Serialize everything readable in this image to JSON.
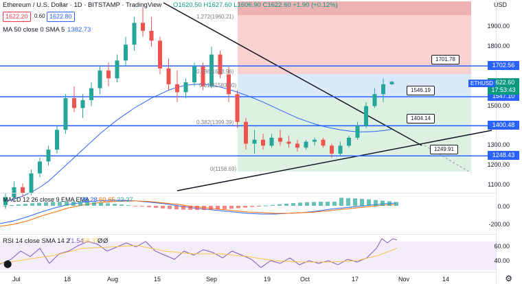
{
  "header": {
    "title": "Ethereum / U.S. Dollar · 1D · BITSTAMP · TradingView",
    "ohlc": "O1620.50 H1627.60 L1606.90 C1622.60 +1.90 (+0.12%)",
    "bid": "1622.20",
    "spread": "0.60",
    "ask": "1622.80",
    "ma_label": "MA 50 close 0 SMA 5",
    "ma_value": "1382.73"
  },
  "price_axis": {
    "currency": "USD",
    "ticks": [
      "1900.00",
      "1800.00",
      "1500.00",
      "1300.00",
      "1200.00",
      "1100.00"
    ],
    "tick_values": [
      1900,
      1800,
      1500,
      1300,
      1200,
      1100
    ],
    "tags": [
      {
        "text": "1702.56",
        "value": 1702.56
      },
      {
        "text": "1547.10",
        "value": 1547.1
      },
      {
        "text": "1400.48",
        "value": 1400.48
      },
      {
        "text": "1248.43",
        "value": 1248.43
      }
    ],
    "last_symbol": "ETHUSD",
    "last_price": "1622.60",
    "countdown": "17:53:43"
  },
  "fib_levels": [
    {
      "text": "1.272(1960.21)",
      "value": 1960.21
    },
    {
      "text": "0.786(1653.96)",
      "value": 1653.96
    },
    {
      "text": "0.618(1583.80)",
      "value": 1583.8
    },
    {
      "text": "0.382(1399.39)",
      "value": 1399.39
    },
    {
      "text": "0(1158.69)",
      "value": 1158.69
    }
  ],
  "callouts": [
    {
      "text": "1701.78",
      "value": 1701.78
    },
    {
      "text": "1546.19",
      "value": 1546.19
    },
    {
      "text": "1404.14",
      "value": 1404.14
    },
    {
      "text": "1249.91",
      "value": 1249.91
    }
  ],
  "horizontal_levels": [
    1702.56,
    1547.1,
    1400.48,
    1248.43
  ],
  "macd": {
    "label": "MACD 12 26 close 9 EMA EMA",
    "v1": "38.28",
    "v2": "60.65",
    "v3": "22.37",
    "ticks": [
      "0.00",
      "-200.00"
    ],
    "colors": {
      "v1": "#2962ff",
      "v2": "#ff6d00",
      "v3": "#26a69a"
    }
  },
  "rsi": {
    "label": "RSI 14 close SMA 14 2",
    "v1": "71.54",
    "v2": "58.37",
    "v3": "Ø",
    "v4": "Ø",
    "ticks": [
      "60.00",
      "40.00"
    ]
  },
  "time_axis": [
    "Jul",
    "18",
    "Aug",
    "15",
    "Sep",
    "19",
    "Oct",
    "17",
    "Nov",
    "14"
  ],
  "colors": {
    "up": "#26a69a",
    "down": "#ef5350",
    "level": "#2962ff",
    "ma": "#2962ff"
  },
  "chart_data": {
    "type": "candlestick",
    "ma_series": [
      1020,
      1030,
      1045,
      1065,
      1090,
      1120,
      1160,
      1200,
      1240,
      1280,
      1320,
      1360,
      1395,
      1430,
      1460,
      1490,
      1515,
      1540,
      1560,
      1580,
      1595,
      1605,
      1610,
      1610,
      1605,
      1596,
      1585,
      1570,
      1555,
      1538,
      1520,
      1500,
      1480,
      1460,
      1440,
      1425,
      1410,
      1398,
      1388,
      1380,
      1374,
      1370,
      1370,
      1372,
      1376,
      1382.73
    ],
    "candles": [
      [
        1000,
        1060,
        980,
        1040
      ],
      [
        1040,
        1120,
        1020,
        1090
      ],
      [
        1090,
        1110,
        1040,
        1060
      ],
      [
        1060,
        1180,
        1050,
        1160
      ],
      [
        1160,
        1240,
        1140,
        1220
      ],
      [
        1220,
        1300,
        1200,
        1280
      ],
      [
        1280,
        1400,
        1260,
        1380
      ],
      [
        1380,
        1560,
        1360,
        1540
      ],
      [
        1540,
        1600,
        1470,
        1490
      ],
      [
        1490,
        1560,
        1440,
        1530
      ],
      [
        1530,
        1620,
        1500,
        1590
      ],
      [
        1590,
        1700,
        1560,
        1680
      ],
      [
        1680,
        1720,
        1600,
        1640
      ],
      [
        1640,
        1760,
        1620,
        1730
      ],
      [
        1730,
        1850,
        1700,
        1810
      ],
      [
        1810,
        1950,
        1780,
        1920
      ],
      [
        1920,
        2000,
        1850,
        1880
      ],
      [
        1880,
        1950,
        1800,
        1830
      ],
      [
        1830,
        1850,
        1660,
        1690
      ],
      [
        1690,
        1740,
        1580,
        1610
      ],
      [
        1610,
        1680,
        1520,
        1570
      ],
      [
        1570,
        1640,
        1540,
        1620
      ],
      [
        1620,
        1720,
        1600,
        1700
      ],
      [
        1700,
        1720,
        1580,
        1600
      ],
      [
        1600,
        1800,
        1590,
        1760
      ],
      [
        1760,
        1780,
        1640,
        1660
      ],
      [
        1660,
        1700,
        1520,
        1560
      ],
      [
        1560,
        1580,
        1390,
        1420
      ],
      [
        1420,
        1440,
        1280,
        1310
      ],
      [
        1310,
        1380,
        1260,
        1330
      ],
      [
        1330,
        1360,
        1280,
        1300
      ],
      [
        1300,
        1360,
        1290,
        1340
      ],
      [
        1340,
        1380,
        1300,
        1320
      ],
      [
        1320,
        1350,
        1290,
        1310
      ],
      [
        1310,
        1330,
        1270,
        1290
      ],
      [
        1290,
        1330,
        1280,
        1320
      ],
      [
        1320,
        1340,
        1300,
        1330
      ],
      [
        1330,
        1340,
        1290,
        1300
      ],
      [
        1300,
        1310,
        1240,
        1260
      ],
      [
        1260,
        1320,
        1250,
        1300
      ],
      [
        1300,
        1350,
        1290,
        1340
      ],
      [
        1340,
        1420,
        1330,
        1400
      ],
      [
        1400,
        1520,
        1390,
        1500
      ],
      [
        1500,
        1590,
        1490,
        1560
      ],
      [
        1560,
        1640,
        1520,
        1610
      ],
      [
        1610,
        1627.6,
        1606.9,
        1622.6
      ]
    ]
  }
}
